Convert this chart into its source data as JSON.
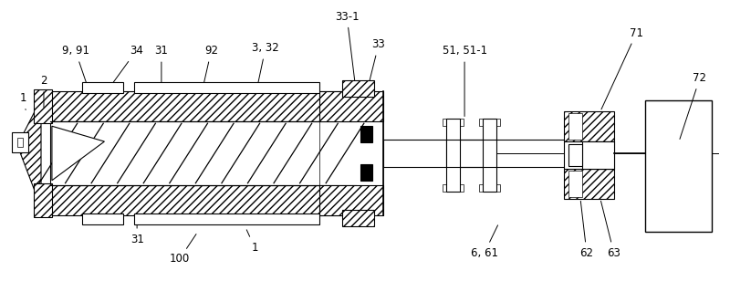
{
  "background_color": "#ffffff",
  "line_color": "#000000",
  "figsize": [
    8.0,
    3.31
  ],
  "dpi": 100
}
